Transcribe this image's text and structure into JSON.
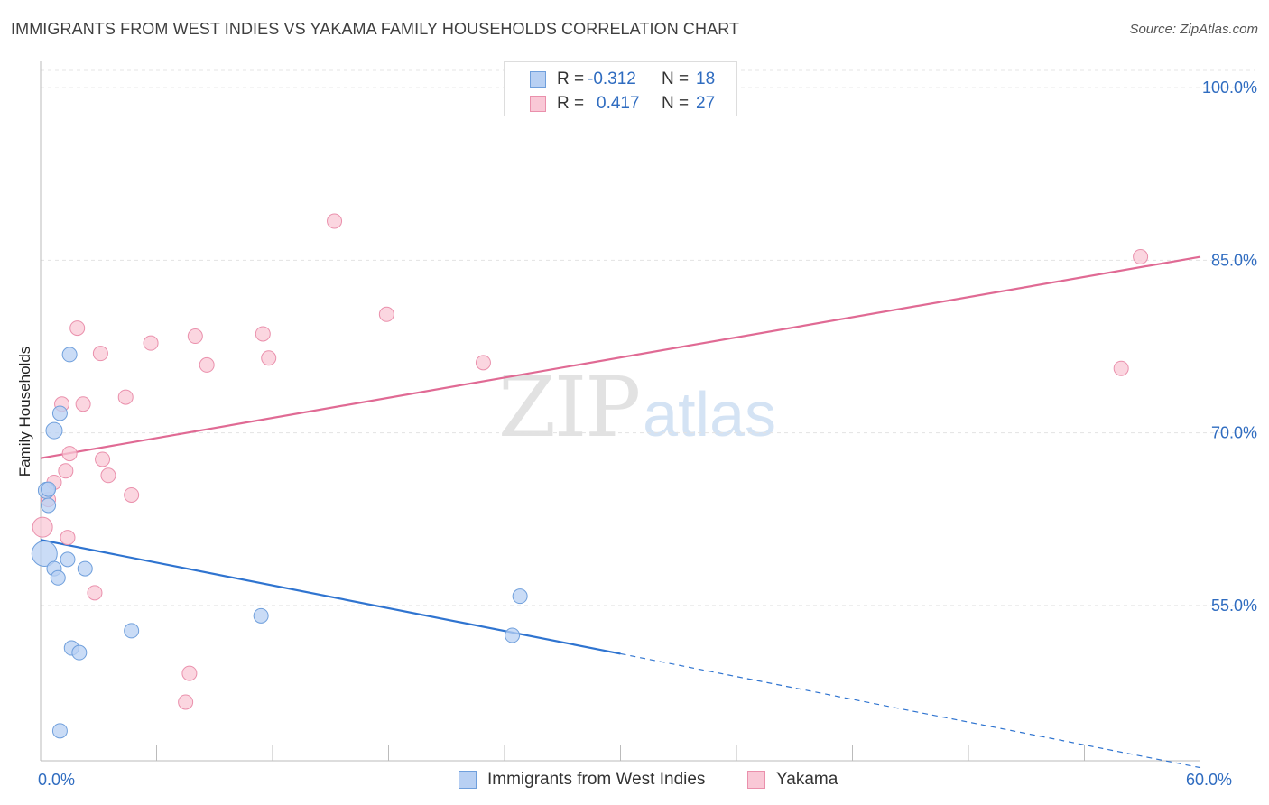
{
  "title": "IMMIGRANTS FROM WEST INDIES VS YAKAMA FAMILY HOUSEHOLDS CORRELATION CHART",
  "source": "Source: ZipAtlas.com",
  "watermark": {
    "zip": "ZIP",
    "atlas": "atlas"
  },
  "legend": {
    "r_label": "R =",
    "n_label": "N =",
    "rows": [
      {
        "r": "-0.312",
        "n": "18",
        "color": "#b8d0f3",
        "border": "#6f9fdc"
      },
      {
        "r": "0.417",
        "n": "27",
        "color": "#f9c8d6",
        "border": "#ea90ac"
      }
    ]
  },
  "chart_data": {
    "type": "scatter",
    "title": "IMMIGRANTS FROM WEST INDIES VS YAKAMA FAMILY HOUSEHOLDS CORRELATION CHART",
    "xlabel": "",
    "ylabel": "Family Households",
    "xlim": [
      0,
      60
    ],
    "ylim": [
      41.5,
      101.5
    ],
    "x_tick_labels": [
      {
        "value": 0,
        "label": "0.0%"
      },
      {
        "value": 60,
        "label": "60.0%"
      }
    ],
    "x_minor_ticks": [
      6,
      12,
      18,
      24,
      30,
      36,
      42,
      48,
      54
    ],
    "y_ticks": [
      {
        "value": 100,
        "label": "100.0%"
      },
      {
        "value": 85,
        "label": "85.0%"
      },
      {
        "value": 70,
        "label": "70.0%"
      },
      {
        "value": 55,
        "label": "55.0%"
      }
    ],
    "grid": true,
    "series": [
      {
        "name": "Immigrants from West Indies",
        "color": "#b8d0f3",
        "stroke": "#6f9fdc",
        "line_color": "#2f74d0",
        "points": [
          [
            0.2,
            59.5,
            14
          ],
          [
            0.3,
            65.0,
            9
          ],
          [
            0.4,
            63.7,
            8
          ],
          [
            0.4,
            65.1,
            8
          ],
          [
            0.7,
            70.2,
            9
          ],
          [
            0.7,
            58.2,
            8
          ],
          [
            0.9,
            57.4,
            8
          ],
          [
            1.0,
            71.7,
            8
          ],
          [
            1.0,
            44.1,
            8
          ],
          [
            1.4,
            59.0,
            8
          ],
          [
            1.5,
            76.8,
            8
          ],
          [
            1.6,
            51.3,
            8
          ],
          [
            2.0,
            50.9,
            8
          ],
          [
            2.3,
            58.2,
            8
          ],
          [
            4.7,
            52.8,
            8
          ],
          [
            11.4,
            54.1,
            8
          ],
          [
            24.4,
            52.4,
            8
          ],
          [
            24.8,
            55.8,
            8
          ]
        ],
        "trend": {
          "x0": 0,
          "y0": 60.7,
          "x_solid_end": 30,
          "y_solid_end": 50.8,
          "x1": 60,
          "y1": 40.9
        }
      },
      {
        "name": "Yakama",
        "color": "#f9c8d6",
        "stroke": "#ea90ac",
        "line_color": "#e06a94",
        "points": [
          [
            0.1,
            61.8,
            11
          ],
          [
            0.4,
            64.2,
            8
          ],
          [
            0.7,
            65.7,
            8
          ],
          [
            1.1,
            72.5,
            8
          ],
          [
            1.3,
            66.7,
            8
          ],
          [
            1.4,
            60.9,
            8
          ],
          [
            1.5,
            68.2,
            8
          ],
          [
            1.9,
            79.1,
            8
          ],
          [
            2.2,
            72.5,
            8
          ],
          [
            2.8,
            56.1,
            8
          ],
          [
            3.1,
            76.9,
            8
          ],
          [
            3.2,
            67.7,
            8
          ],
          [
            3.5,
            66.3,
            8
          ],
          [
            4.4,
            73.1,
            8
          ],
          [
            4.7,
            64.6,
            8
          ],
          [
            5.7,
            77.8,
            8
          ],
          [
            7.5,
            46.6,
            8
          ],
          [
            7.7,
            49.1,
            8
          ],
          [
            8.0,
            78.4,
            8
          ],
          [
            8.6,
            75.9,
            8
          ],
          [
            11.5,
            78.6,
            8
          ],
          [
            11.8,
            76.5,
            8
          ],
          [
            15.2,
            88.4,
            8
          ],
          [
            17.9,
            80.3,
            8
          ],
          [
            22.9,
            76.1,
            8
          ],
          [
            55.9,
            75.6,
            8
          ],
          [
            56.9,
            85.3,
            8
          ]
        ],
        "trend": {
          "x0": 0,
          "y0": 67.8,
          "x1": 60,
          "y1": 85.3
        }
      }
    ]
  }
}
